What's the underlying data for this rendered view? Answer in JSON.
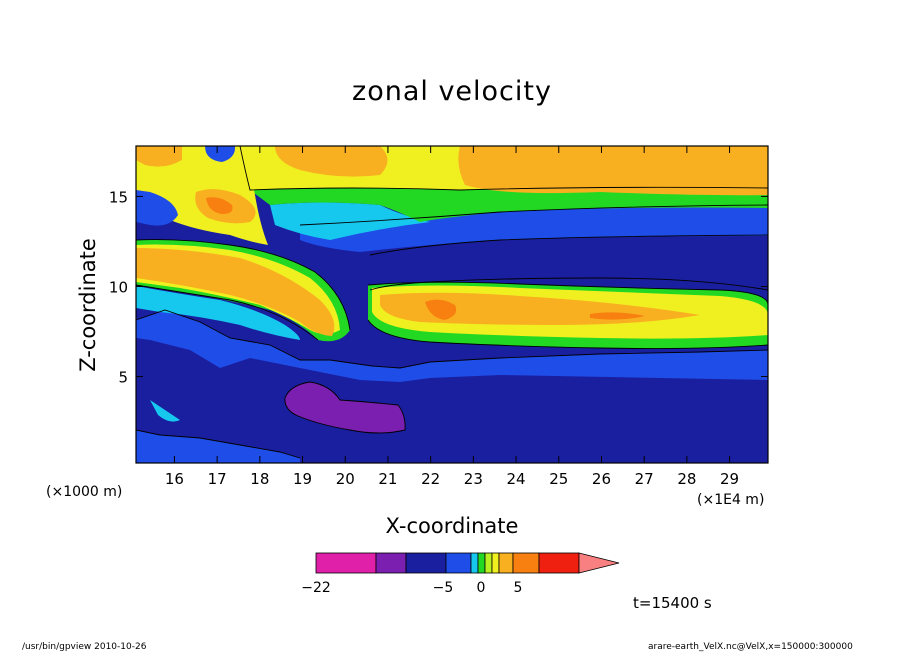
{
  "chart_data": {
    "type": "heatmap",
    "title": "zonal velocity",
    "xlabel": "X-coordinate",
    "ylabel": "Z-coordinate",
    "x_units_note": "(×1E4 m)",
    "y_units_note": "(×1000 m)",
    "x_ticks": [
      16,
      17,
      18,
      19,
      20,
      21,
      22,
      23,
      24,
      25,
      26,
      27,
      28,
      29
    ],
    "y_ticks": [
      5,
      10,
      15
    ],
    "xlim": [
      15.1,
      29.9
    ],
    "ylim": [
      0.2,
      17.8
    ],
    "colorbar": {
      "labels": [
        {
          "text": "−22",
          "value": -22
        },
        {
          "text": "−5",
          "value": -5
        },
        {
          "text": "0",
          "value": 0
        },
        {
          "text": "5",
          "value": 5
        }
      ],
      "colors": [
        "#e020a8",
        "#7a1fb0",
        "#1a1fa0",
        "#1f4de8",
        "#17c8ee",
        "#22d822",
        "#b8f020",
        "#f0f020",
        "#f8b020",
        "#f88010",
        "#f02010",
        "#f88080"
      ]
    },
    "time_label": "t=15400 s",
    "footer_left": "/usr/bin/gpview  2010-10-26",
    "footer_right": "arare-earth_VelX.nc@VelX,x=150000:300000",
    "approx_field_regions": [
      {
        "name": "lower jet core",
        "x": [
          19,
          21.5
        ],
        "z": [
          1.5,
          3.5
        ],
        "value": -15
      },
      {
        "name": "mid tilted orange band",
        "x": [
          15.1,
          20
        ],
        "z": [
          6.5,
          12
        ],
        "value": 5
      },
      {
        "name": "upper-right orange band",
        "x": [
          23,
          29.9
        ],
        "z": [
          15,
          17.8
        ],
        "value": 5
      },
      {
        "name": "mid-right orange band",
        "x": [
          21,
          29
        ],
        "z": [
          6.5,
          9.5
        ],
        "value": 5
      },
      {
        "name": "upper blue band",
        "x": [
          21,
          29.9
        ],
        "z": [
          9.5,
          13.5
        ],
        "value": -7
      },
      {
        "name": "lower blue region",
        "x": [
          15.1,
          29.9
        ],
        "z": [
          0.2,
          7
        ],
        "value": -6
      }
    ]
  }
}
